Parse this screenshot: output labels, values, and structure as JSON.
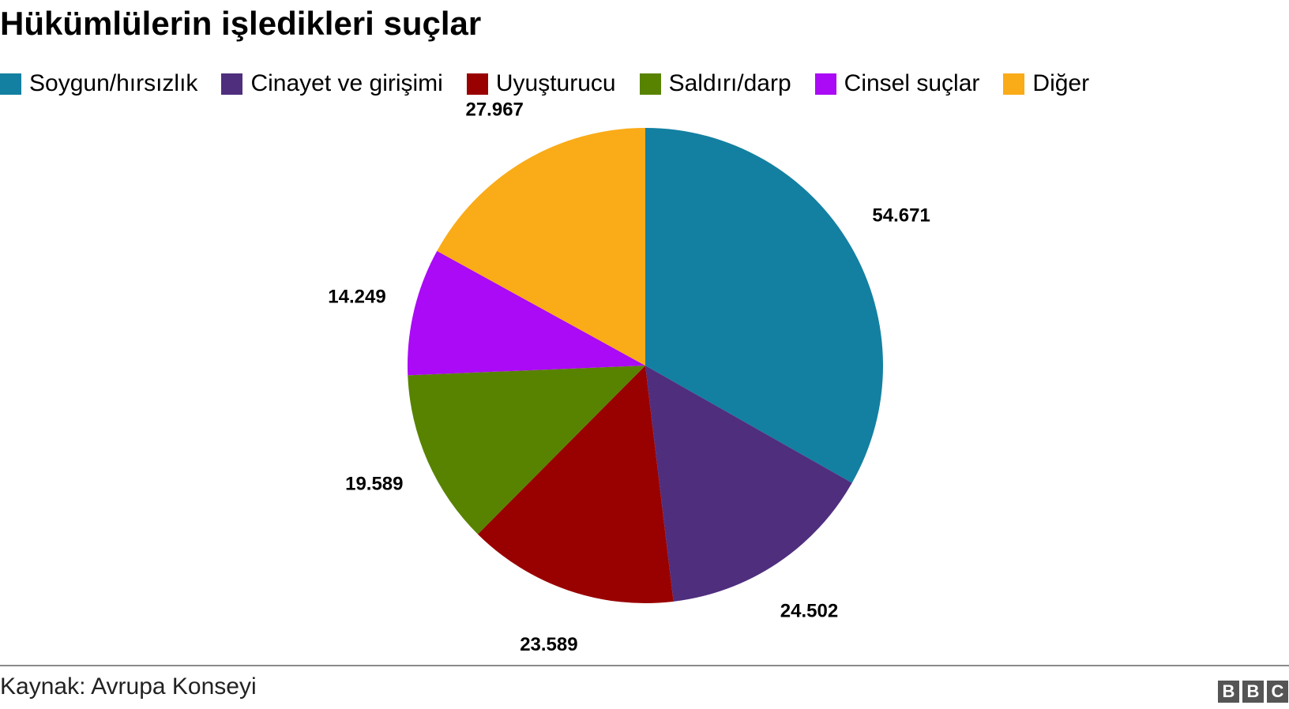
{
  "chart_data": {
    "type": "pie",
    "title": "Hükümlülerin işledikleri suçlar",
    "legend": "top",
    "categories": [
      "Soygun/hırsızlık",
      "Cinayet ve girişimi",
      "Uyuşturucu",
      "Saldırı/darp",
      "Cinsel suçlar",
      "Diğer"
    ],
    "values": [
      54671,
      24502,
      23589,
      19589,
      14249,
      27967
    ],
    "value_labels": [
      "54.671",
      "24.502",
      "23.589",
      "19.589",
      "14.249",
      "27.967"
    ],
    "colors": [
      "#1380A1",
      "#4F2E7E",
      "#990000",
      "#588300",
      "#AA0AF5",
      "#FAAB18"
    ],
    "source": "Kaynak: Avrupa Konseyi"
  },
  "branding": {
    "logo_letters": [
      "B",
      "B",
      "C"
    ]
  }
}
